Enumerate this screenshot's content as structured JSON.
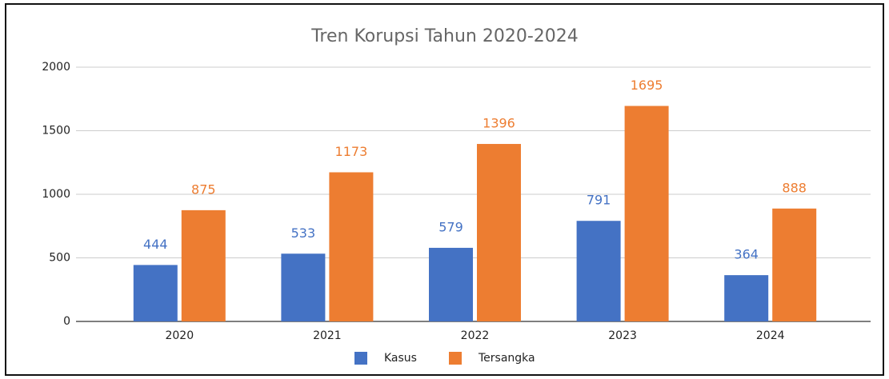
{
  "chart_data": {
    "type": "bar",
    "title": "Tren Korupsi Tahun 2020-2024",
    "categories": [
      "2020",
      "2021",
      "2022",
      "2023",
      "2024"
    ],
    "series": [
      {
        "name": "Kasus",
        "color": "#4472c4",
        "values": [
          444,
          533,
          579,
          791,
          364
        ]
      },
      {
        "name": "Tersangka",
        "color": "#ed7d31",
        "values": [
          875,
          1173,
          1396,
          1695,
          888
        ]
      }
    ],
    "ylim": [
      0,
      2000
    ],
    "yticks": [
      0,
      500,
      1000,
      1500,
      2000
    ],
    "grid": true,
    "legend": "bottom"
  }
}
